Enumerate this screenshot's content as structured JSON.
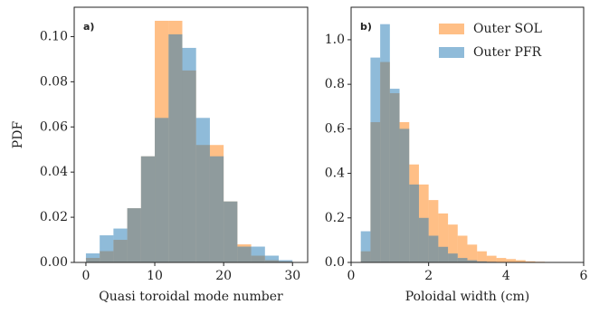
{
  "chart_data": [
    {
      "type": "histogram",
      "annotation": "a)",
      "xlabel": "Quasi toroidal mode number",
      "ylabel": "PDF",
      "bins": [
        0,
        2,
        4,
        6,
        8,
        10,
        12,
        14,
        16,
        18,
        20,
        22,
        24,
        26,
        28,
        30
      ],
      "series": [
        {
          "color": "#ff7f0e",
          "values": [
            0.002,
            0.005,
            0.01,
            0.024,
            0.047,
            0.107,
            0.107,
            0.085,
            0.052,
            0.052,
            0.027,
            0.008,
            0.003,
            0.001,
            0.0005
          ]
        },
        {
          "color": "#1f77b4",
          "values": [
            0.004,
            0.012,
            0.015,
            0.024,
            0.047,
            0.064,
            0.101,
            0.095,
            0.064,
            0.047,
            0.027,
            0.007,
            0.007,
            0.003,
            0.001
          ]
        }
      ],
      "xlim": [
        -1.7,
        32.2
      ],
      "ylim": [
        0,
        0.113
      ],
      "xticks": [
        0,
        10,
        20,
        30
      ],
      "yticks": [
        {
          "value": 0,
          "label": "0.00"
        },
        {
          "value": 0.02,
          "label": "0.02"
        },
        {
          "value": 0.04,
          "label": "0.04"
        },
        {
          "value": 0.06,
          "label": "0.06"
        },
        {
          "value": 0.08,
          "label": "0.08"
        },
        {
          "value": 0.1,
          "label": "0.10"
        }
      ]
    },
    {
      "type": "histogram",
      "annotation": "b)",
      "xlabel": "Poloidal width (cm)",
      "legend": "upper right",
      "bins": [
        0,
        0.25,
        0.5,
        0.75,
        1,
        1.25,
        1.5,
        1.75,
        2,
        2.25,
        2.5,
        2.75,
        3,
        3.25,
        3.5,
        3.75,
        4,
        4.25,
        4.5,
        4.75,
        5,
        5.25,
        5.5,
        5.75,
        6
      ],
      "series": [
        {
          "name": "Outer SOL",
          "color": "#ff7f0e",
          "values": [
            0,
            0.05,
            0.63,
            0.9,
            0.76,
            0.63,
            0.44,
            0.35,
            0.28,
            0.22,
            0.17,
            0.12,
            0.08,
            0.05,
            0.03,
            0.02,
            0.015,
            0.01,
            0.005,
            0.003,
            0.002,
            0.001,
            0.001,
            0
          ]
        },
        {
          "name": "Outer PFR",
          "color": "#1f77b4",
          "values": [
            0,
            0.14,
            0.92,
            1.07,
            0.78,
            0.6,
            0.35,
            0.2,
            0.12,
            0.07,
            0.04,
            0.02,
            0.01,
            0.005,
            0.003,
            0.001,
            0,
            0,
            0,
            0,
            0,
            0,
            0,
            0
          ]
        }
      ],
      "xlim": [
        0,
        6
      ],
      "ylim": [
        0,
        1.146
      ],
      "xticks": [
        0,
        2,
        4,
        6
      ],
      "yticks": [
        {
          "value": 0,
          "label": "0.0"
        },
        0.2,
        0.4,
        0.6,
        0.8,
        {
          "value": 1,
          "label": "1.0"
        }
      ]
    }
  ]
}
